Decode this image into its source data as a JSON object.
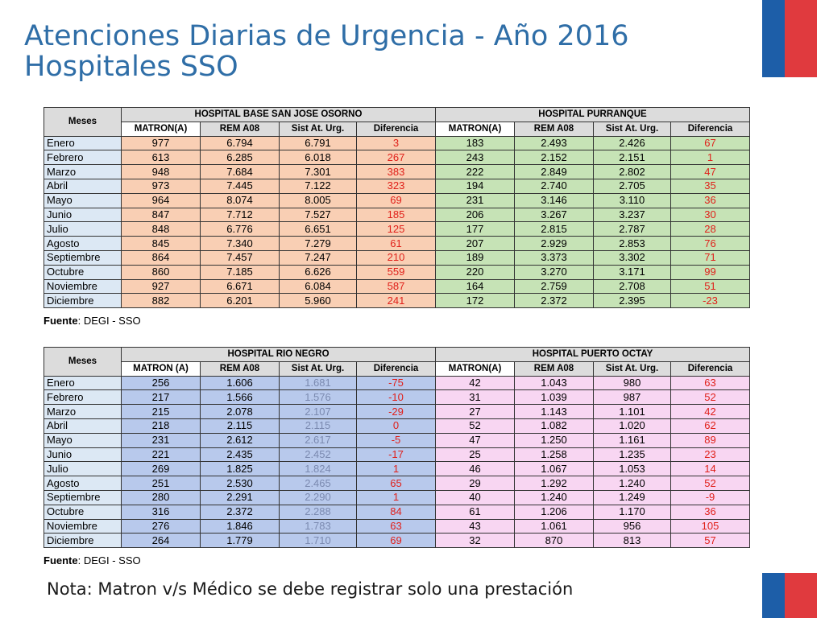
{
  "title": {
    "line1": "Atenciones Diarias de Urgencia - Año 2016",
    "line2": "Hospitales SSO"
  },
  "table1": {
    "meses_label": "Meses",
    "hospital_a": "HOSPITAL BASE SAN JOSE OSORNO",
    "hospital_b": "HOSPITAL PURRANQUE",
    "cols_a": [
      "MATRON(A)",
      "REM A08",
      "Sist At. Urg.",
      "Diferencia"
    ],
    "cols_b": [
      "MATRON(A)",
      "REM A08",
      "Sist At. Urg.",
      "Diferencia"
    ],
    "rows": [
      [
        "Enero",
        "977",
        "6.794",
        "6.791",
        "3",
        "183",
        "2.493",
        "2.426",
        "67"
      ],
      [
        "Febrero",
        "613",
        "6.285",
        "6.018",
        "267",
        "243",
        "2.152",
        "2.151",
        "1"
      ],
      [
        "Marzo",
        "948",
        "7.684",
        "7.301",
        "383",
        "222",
        "2.849",
        "2.802",
        "47"
      ],
      [
        "Abril",
        "973",
        "7.445",
        "7.122",
        "323",
        "194",
        "2.740",
        "2.705",
        "35"
      ],
      [
        "Mayo",
        "964",
        "8.074",
        "8.005",
        "69",
        "231",
        "3.146",
        "3.110",
        "36"
      ],
      [
        "Junio",
        "847",
        "7.712",
        "7.527",
        "185",
        "206",
        "3.267",
        "3.237",
        "30"
      ],
      [
        "Julio",
        "848",
        "6.776",
        "6.651",
        "125",
        "177",
        "2.815",
        "2.787",
        "28"
      ],
      [
        "Agosto",
        "845",
        "7.340",
        "7.279",
        "61",
        "207",
        "2.929",
        "2.853",
        "76"
      ],
      [
        "Septiembre",
        "864",
        "7.457",
        "7.247",
        "210",
        "189",
        "3.373",
        "3.302",
        "71"
      ],
      [
        "Octubre",
        "860",
        "7.185",
        "6.626",
        "559",
        "220",
        "3.270",
        "3.171",
        "99"
      ],
      [
        "Noviembre",
        "927",
        "6.671",
        "6.084",
        "587",
        "164",
        "2.759",
        "2.708",
        "51"
      ],
      [
        "Diciembre",
        "882",
        "6.201",
        "5.960",
        "241",
        "172",
        "2.372",
        "2.395",
        "-23"
      ]
    ]
  },
  "fuente1": {
    "label": "Fuente",
    "text": ": DEGI - SSO"
  },
  "table2": {
    "meses_label": "Meses",
    "hospital_a": "HOSPITAL RIO NEGRO",
    "hospital_b": "HOSPITAL PUERTO OCTAY",
    "cols_a": [
      "MATRON (A)",
      "REM A08",
      "Sist At. Urg.",
      "Diferencia"
    ],
    "cols_b": [
      "MATRON(A)",
      "REM A08",
      "Sist At. Urg.",
      "Diferencia"
    ],
    "rows": [
      [
        "Enero",
        "256",
        "1.606",
        "1.681",
        "-75",
        "42",
        "1.043",
        "980",
        "63"
      ],
      [
        "Febrero",
        "217",
        "1.566",
        "1.576",
        "-10",
        "31",
        "1.039",
        "987",
        "52"
      ],
      [
        "Marzo",
        "215",
        "2.078",
        "2.107",
        "-29",
        "27",
        "1.143",
        "1.101",
        "42"
      ],
      [
        "Abril",
        "218",
        "2.115",
        "2.115",
        "0",
        "52",
        "1.082",
        "1.020",
        "62"
      ],
      [
        "Mayo",
        "231",
        "2.612",
        "2.617",
        "-5",
        "47",
        "1.250",
        "1.161",
        "89"
      ],
      [
        "Junio",
        "221",
        "2.435",
        "2.452",
        "-17",
        "25",
        "1.258",
        "1.235",
        "23"
      ],
      [
        "Julio",
        "269",
        "1.825",
        "1.824",
        "1",
        "46",
        "1.067",
        "1.053",
        "14"
      ],
      [
        "Agosto",
        "251",
        "2.530",
        "2.465",
        "65",
        "29",
        "1.292",
        "1.240",
        "52"
      ],
      [
        "Septiembre",
        "280",
        "2.291",
        "2.290",
        "1",
        "40",
        "1.240",
        "1.249",
        "-9"
      ],
      [
        "Octubre",
        "316",
        "2.372",
        "2.288",
        "84",
        "61",
        "1.206",
        "1.170",
        "36"
      ],
      [
        "Noviembre",
        "276",
        "1.846",
        "1.783",
        "63",
        "43",
        "1.061",
        "956",
        "105"
      ],
      [
        "Diciembre",
        "264",
        "1.779",
        "1.710",
        "69",
        "32",
        "870",
        "813",
        "57"
      ]
    ]
  },
  "fuente2": {
    "label": "Fuente",
    "text": ": DEGI - SSO"
  },
  "nota": "Nota: Matron v/s Médico se debe registrar solo una prestación",
  "colors": {
    "title": "#2f6ea7",
    "osorno_fill": "#f9cfb4",
    "purranque_fill": "#c6e3b6",
    "rio_negro_fill": "#b8c9ec",
    "puerto_octay_fill": "#f8d6f2",
    "diferencia_text": "#e0201a",
    "flag_blue": "#1d5ea8",
    "flag_red": "#e03a3e"
  }
}
